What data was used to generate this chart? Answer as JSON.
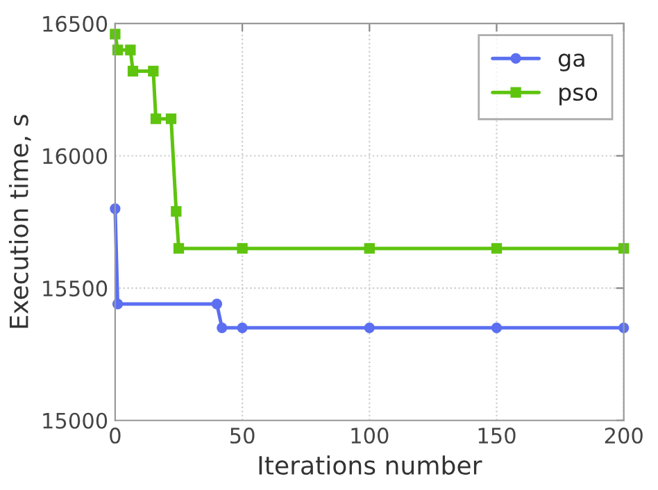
{
  "chart_data": {
    "type": "line",
    "xlabel": "Iterations number",
    "ylabel": "Execution time, s",
    "xlim": [
      0,
      200
    ],
    "xticks": [
      0,
      50,
      100,
      150,
      200
    ],
    "ylim": [
      15000,
      16500
    ],
    "yticks": [
      15000,
      15500,
      16000,
      16500
    ],
    "grid": true,
    "legend": "top right",
    "line_style": "solid",
    "series": [
      {
        "name": "ga",
        "color": "#5b6ff0",
        "marker": "circle",
        "x": [
          0,
          1,
          40,
          42,
          50,
          100,
          150,
          200
        ],
        "values": [
          15800,
          15440,
          15440,
          15350,
          15350,
          15350,
          15350,
          15350
        ]
      },
      {
        "name": "pso",
        "color": "#5ec40e",
        "marker": "square",
        "x": [
          0,
          1,
          6,
          7,
          15,
          16,
          22,
          24,
          25,
          50,
          100,
          150,
          200
        ],
        "values": [
          16460,
          16400,
          16400,
          16320,
          16320,
          16140,
          16140,
          15790,
          15650,
          15650,
          15650,
          15650,
          15650
        ]
      }
    ]
  }
}
